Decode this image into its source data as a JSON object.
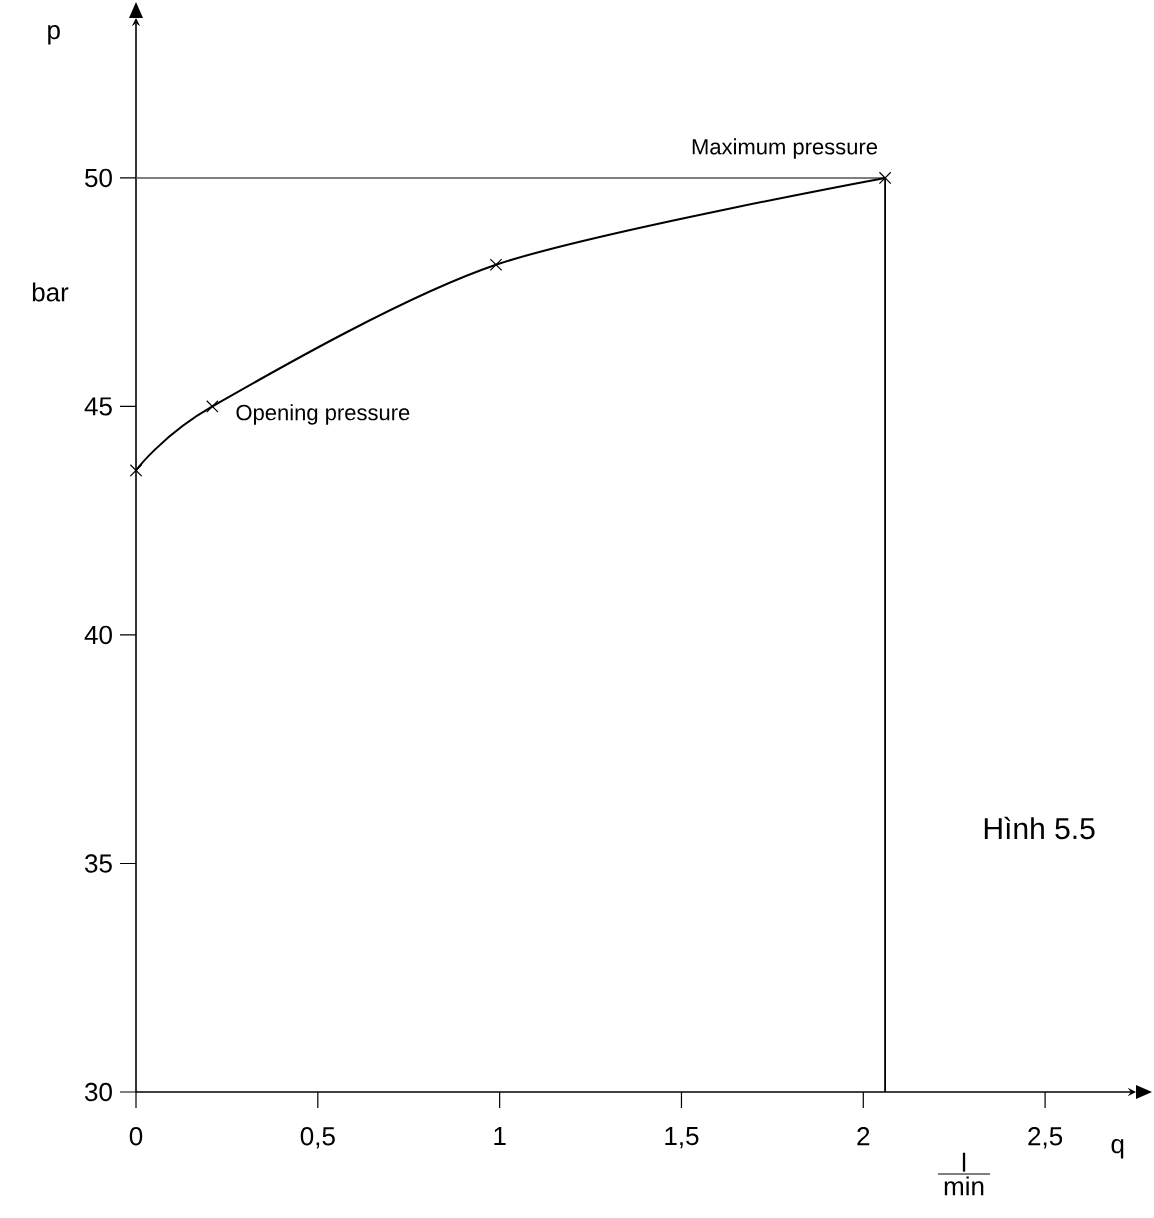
{
  "chart_data": {
    "type": "line",
    "xlabel": "q",
    "ylabel": "p",
    "annotations": [
      "bar",
      {
        "text": "Opening pressure",
        "x": 0.21,
        "y": 45
      },
      {
        "text": "Maximum pressure",
        "x": 2.06,
        "y": 50
      },
      "l",
      "min",
      "Hình 5.5"
    ],
    "xlim": [
      0,
      2.75
    ],
    "ylim": [
      30,
      53.5
    ],
    "xticks": [
      0,
      {
        "value": 0.5,
        "label": "0,5"
      },
      1,
      {
        "value": 1.5,
        "label": "1,5"
      },
      2,
      {
        "value": 2.5,
        "label": "2,5"
      }
    ],
    "yticks": [
      30,
      35,
      40,
      45,
      50
    ],
    "marker": "cross",
    "line_style": "solid",
    "series": [
      {
        "color": "#000000",
        "x": [
          0,
          0.21,
          0.99,
          2.06
        ],
        "values": [
          43.6,
          45,
          48.1,
          50
        ]
      }
    ],
    "ref_lines": [
      {
        "axis": "y",
        "value": 50,
        "color": "#555555"
      },
      {
        "axis": "x",
        "value": 2.06,
        "color": "#000000"
      }
    ]
  }
}
